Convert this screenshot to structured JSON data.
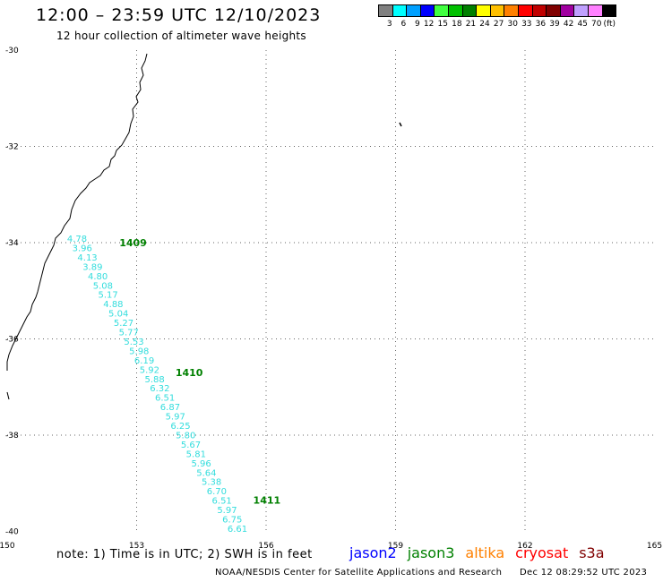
{
  "header": {
    "title": "12:00 – 23:59 UTC 12/10/2023",
    "subtitle": "12 hour collection of altimeter wave heights"
  },
  "color_scale": {
    "unit": "(ft)",
    "steps": [
      {
        "label": "3",
        "color": "#808080"
      },
      {
        "label": "6",
        "color": "#00ffff"
      },
      {
        "label": "9",
        "color": "#00a0ff"
      },
      {
        "label": "12",
        "color": "#0000ff"
      },
      {
        "label": "15",
        "color": "#40ff40"
      },
      {
        "label": "18",
        "color": "#00c000"
      },
      {
        "label": "21",
        "color": "#008000"
      },
      {
        "label": "24",
        "color": "#ffff00"
      },
      {
        "label": "27",
        "color": "#ffc000"
      },
      {
        "label": "30",
        "color": "#ff8000"
      },
      {
        "label": "33",
        "color": "#ff0000"
      },
      {
        "label": "36",
        "color": "#c00000"
      },
      {
        "label": "39",
        "color": "#800000"
      },
      {
        "label": "42",
        "color": "#a000a0"
      },
      {
        "label": "45",
        "color": "#c0a0ff"
      },
      {
        "label": "70",
        "color": "#ff80ff"
      },
      {
        "label": "",
        "color": "#000000"
      }
    ]
  },
  "map": {
    "lon_ticks": [
      "150",
      "153",
      "156",
      "159",
      "162",
      "165"
    ],
    "lat_ticks": [
      "-30",
      "-32",
      "-34",
      "-36",
      "-38",
      "-40"
    ],
    "pass_labels": [
      {
        "text": "1409",
        "lon": 152.6,
        "lat": -34.0
      },
      {
        "text": "1410",
        "lon": 153.9,
        "lat": -36.7
      },
      {
        "text": "1411",
        "lon": 155.7,
        "lat": -39.35
      }
    ],
    "track_color": "#33dddd",
    "pass_color": "#008000",
    "wave_heights": [
      "4.78",
      "3.96",
      "4.13",
      "3.89",
      "4.80",
      "5.08",
      "5.17",
      "4.88",
      "5.04",
      "5.27",
      "5.77",
      "5.53",
      "5.98",
      "6.19",
      "5.92",
      "5.88",
      "6.32",
      "6.51",
      "6.87",
      "5.97",
      "6.25",
      "5.80",
      "5.67",
      "5.81",
      "5.96",
      "5.64",
      "5.38",
      "6.70",
      "6.51",
      "5.97",
      "6.75",
      "6.61"
    ]
  },
  "footer": {
    "note": "note: 1) Time is in UTC; 2) SWH is in feet",
    "satellites": [
      {
        "name": "jason2",
        "color": "#0000ff"
      },
      {
        "name": "jason3",
        "color": "#008000"
      },
      {
        "name": "altika",
        "color": "#ff8000"
      },
      {
        "name": "cryosat",
        "color": "#ff0000"
      },
      {
        "name": "s3a",
        "color": "#800000"
      }
    ],
    "credit": "NOAA/NESDIS Center for Satellite Applications and Research",
    "timestamp": "Dec 12 08:29:52 UTC 2023"
  }
}
